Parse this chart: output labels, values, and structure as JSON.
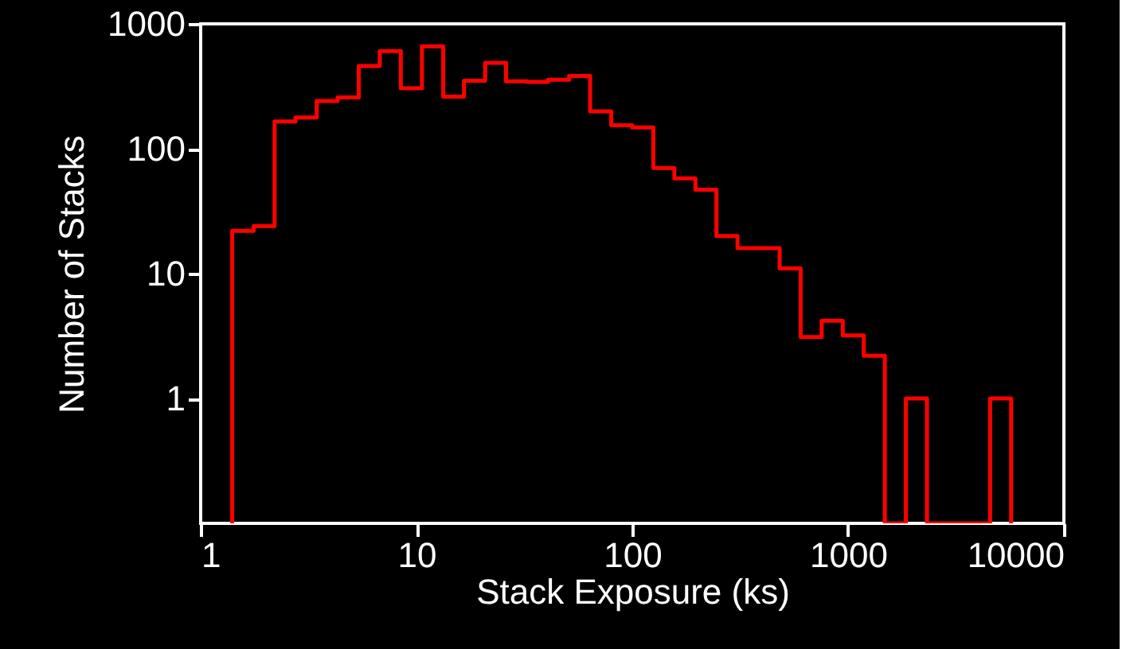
{
  "chart_data": {
    "type": "histogram",
    "xlabel": "Stack Exposure (ks)",
    "ylabel": "Number of Stacks",
    "bins": [
      1.4,
      1.76,
      2.2,
      2.75,
      3.45,
      4.31,
      5.4,
      6.76,
      8.46,
      10.6,
      13.3,
      16.6,
      20.8,
      26.0,
      32.5,
      40.7,
      51.0,
      63.8,
      79.9,
      100,
      125.2,
      156.7,
      196.1,
      245.5,
      307.3,
      384.7,
      481.6,
      602.8,
      754.6,
      944.6,
      1182,
      1480,
      1853,
      2320,
      2904,
      3635,
      4550,
      5696
    ],
    "values": [
      22,
      24,
      165,
      178,
      241,
      258,
      459,
      606,
      305,
      661,
      261,
      350,
      488,
      347,
      343,
      357,
      382,
      199,
      154,
      148,
      70,
      58,
      47,
      20,
      16,
      16,
      11,
      3.1,
      4.2,
      3.2,
      2.2,
      null,
      1,
      null,
      null,
      null,
      1
    ],
    "color": "#ff0000",
    "log": "xy",
    "xlim": [
      1,
      10000
    ],
    "xticks": [
      1,
      10,
      100,
      1000,
      10000
    ],
    "ylim": [
      0.1,
      1000
    ],
    "yticks": [
      1,
      10,
      100,
      1000
    ],
    "grid": false
  }
}
